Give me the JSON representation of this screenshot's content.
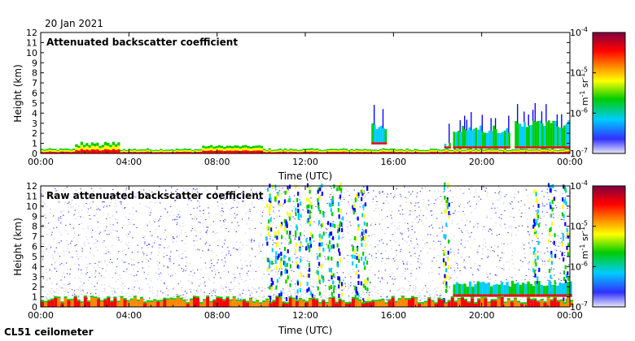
{
  "date": "20 Jan 2021",
  "instrument": "CL51 ceilometer",
  "chart_data": [
    {
      "type": "heatmap",
      "title": "Attenuated backscatter coefficient",
      "xlabel": "Time (UTC)",
      "ylabel": "Height (km)",
      "x_ticks": [
        "00:00",
        "04:00",
        "08:00",
        "12:00",
        "16:00",
        "20:00",
        "00:00"
      ],
      "x_tick_hours": [
        0,
        4,
        8,
        12,
        16,
        20,
        24
      ],
      "xlim_hours": [
        0,
        24
      ],
      "ylim": [
        0,
        12
      ],
      "y_ticks": [
        0,
        1,
        2,
        3,
        4,
        5,
        6,
        7,
        8,
        9,
        10,
        11,
        12
      ],
      "colorbar": {
        "scale": "log",
        "min": 1e-07,
        "max": 0.0001,
        "tick_exponents": [
          "-7",
          "-6",
          "-5",
          "-4"
        ],
        "label": "m-1 sr-1"
      },
      "features": {
        "boundary_layer_top_km": 0.3,
        "cloud_layers": [
          {
            "start_h": 15.0,
            "end_h": 15.6,
            "base_km": 0.9,
            "top_km": 3.0
          },
          {
            "start_h": 18.3,
            "end_h": 18.6,
            "base_km": 0.5,
            "top_km": 1.2
          },
          {
            "start_h": 18.7,
            "end_h": 21.3,
            "base_km": 0.5,
            "top_km": 2.8
          },
          {
            "start_h": 21.5,
            "end_h": 24.0,
            "base_km": 0.5,
            "top_km": 3.3
          }
        ]
      }
    },
    {
      "type": "heatmap",
      "title": "Raw attenuated backscatter coefficient",
      "xlabel": "Time (UTC)",
      "ylabel": "Height (km)",
      "x_ticks": [
        "00:00",
        "04:00",
        "08:00",
        "12:00",
        "16:00",
        "20:00",
        "00:00"
      ],
      "x_tick_hours": [
        0,
        4,
        8,
        12,
        16,
        20,
        24
      ],
      "xlim_hours": [
        0,
        24
      ],
      "ylim": [
        0,
        12
      ],
      "y_ticks": [
        0,
        1,
        2,
        3,
        4,
        5,
        6,
        7,
        8,
        9,
        10,
        11,
        12
      ],
      "colorbar": {
        "scale": "log",
        "min": 1e-07,
        "max": 0.0001,
        "tick_exponents": [
          "-7",
          "-6",
          "-5",
          "-4"
        ],
        "label": "m-1 sr-1"
      },
      "features": {
        "background": "noise",
        "precipitation_columns_h": [
          10.2,
          10.6,
          11.0,
          11.5,
          12.0,
          12.5,
          13.0,
          13.4,
          14.1,
          14.5,
          18.2,
          22.3,
          23.0,
          23.6
        ],
        "cloud_band": {
          "start_h": 18.7,
          "end_h": 24.0,
          "base_km": 1.0,
          "top_km": 2.6
        }
      }
    }
  ],
  "colors": {
    "scale": [
      "#e8e8f8",
      "#0000ff",
      "#00ccff",
      "#00cc00",
      "#ffff00",
      "#ff8800",
      "#ff0000",
      "#800000"
    ]
  }
}
